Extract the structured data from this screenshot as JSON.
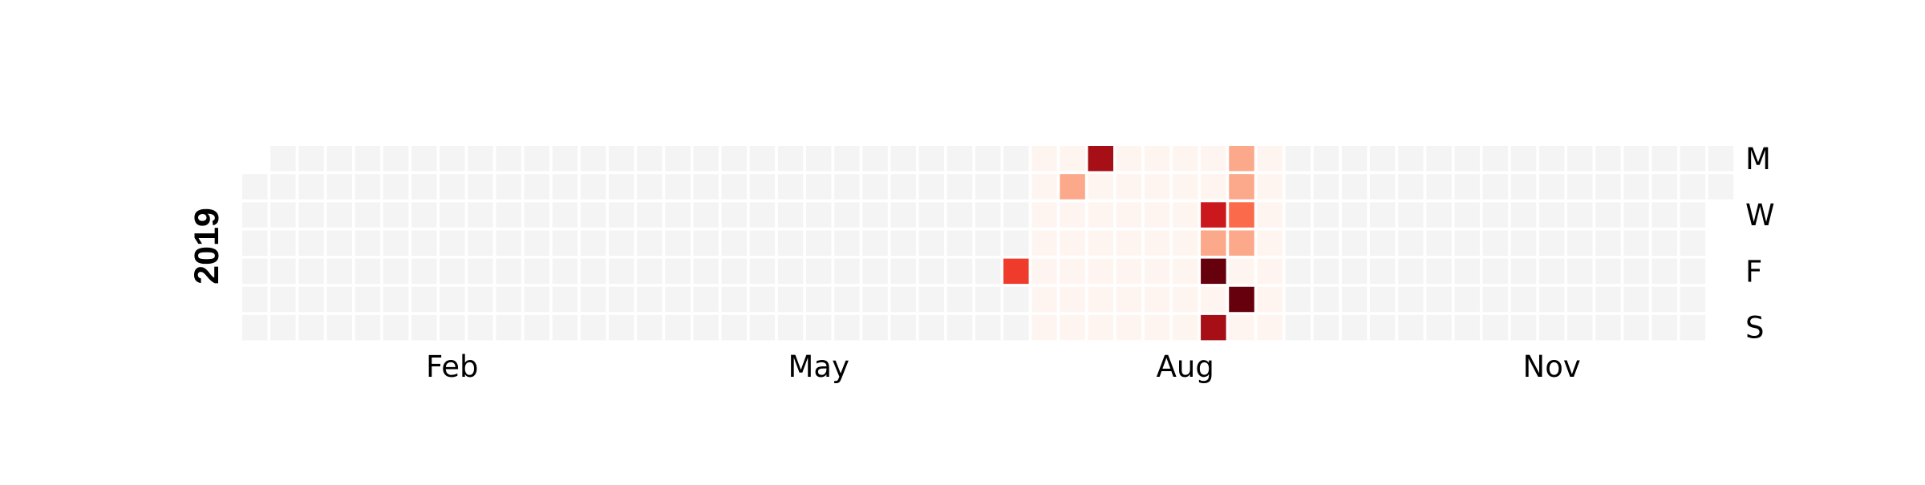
{
  "chart_data": {
    "type": "heatmap",
    "title": "",
    "year": "2019",
    "x_ticks": [
      {
        "label": "Feb",
        "week": 7
      },
      {
        "label": "May",
        "week": 20
      },
      {
        "label": "Aug",
        "week": 33
      },
      {
        "label": "Nov",
        "week": 46
      }
    ],
    "y_ticks": [
      {
        "label": "M",
        "row": 0
      },
      {
        "label": "W",
        "row": 2
      },
      {
        "label": "F",
        "row": 4
      },
      {
        "label": "S",
        "row": 6
      }
    ],
    "grid": {
      "weeks": 53,
      "rows": 7,
      "start_weekday": 1,
      "num_days": 365,
      "row_order": [
        "Mon",
        "Tue",
        "Wed",
        "Thu",
        "Fri",
        "Sat",
        "Sun"
      ]
    },
    "empty_color": "#f4f4f4",
    "colormap": "Reds",
    "colors": {
      "very_light": "#fff5f0",
      "light": "#fca98b",
      "medium": "#fb6a4a",
      "red": "#ef3b2c",
      "dark_red": "#cb181d",
      "darker_red": "#a50f15",
      "deepest_red": "#67000d"
    },
    "highlight_range": {
      "first_week": 28,
      "last_week": 36,
      "shade": "very_light"
    },
    "cells": [
      {
        "week": 27,
        "row": 4,
        "shade": "red"
      },
      {
        "week": 29,
        "row": 1,
        "shade": "light"
      },
      {
        "week": 30,
        "row": 0,
        "shade": "darker_red"
      },
      {
        "week": 34,
        "row": 2,
        "shade": "dark_red"
      },
      {
        "week": 34,
        "row": 3,
        "shade": "light"
      },
      {
        "week": 34,
        "row": 4,
        "shade": "deepest_red"
      },
      {
        "week": 34,
        "row": 6,
        "shade": "darker_red"
      },
      {
        "week": 35,
        "row": 0,
        "shade": "light"
      },
      {
        "week": 35,
        "row": 1,
        "shade": "light"
      },
      {
        "week": 35,
        "row": 2,
        "shade": "medium"
      },
      {
        "week": 35,
        "row": 3,
        "shade": "light"
      },
      {
        "week": 35,
        "row": 5,
        "shade": "deepest_red"
      }
    ]
  }
}
